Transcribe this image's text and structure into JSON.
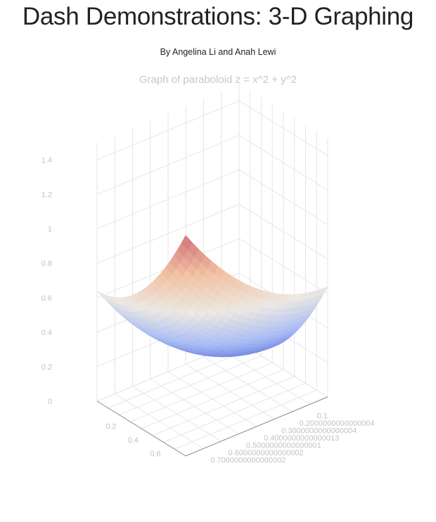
{
  "header": {
    "title": "Dash Demonstrations: 3-D Graphing",
    "byline": "By Angelina Li and Anah Lewi"
  },
  "chart_data": {
    "type": "surface",
    "title": "Graph of paraboloid z = x^2 + y^2",
    "function": "z = x^2 + y^2",
    "x": [
      0,
      0.1,
      0.2,
      0.3,
      0.4,
      0.5,
      0.6,
      0.7,
      0.8
    ],
    "y": [
      0,
      0.1,
      0.2,
      0.3,
      0.4,
      0.5,
      0.6,
      0.7,
      0.8
    ],
    "zlim": [
      0,
      1.5
    ],
    "colorscale": [
      "#5a6fdc",
      "#a9bdf5",
      "#ece8e2",
      "#f1c3a4",
      "#d4717a"
    ],
    "z_ticks": [
      "0",
      "0.2",
      "0.4",
      "0.6",
      "0.8",
      "1",
      "1.2",
      "1.4"
    ],
    "x_ticks": [
      "0.1",
      "0.2000000000000004",
      "0.3000000000000004",
      "0.4000000000000013",
      "0.5000000000000001",
      "0.6000000000000002",
      "0.7000000000000002"
    ],
    "y_ticks": [
      "0.2",
      "0.4",
      "0.6"
    ],
    "grid": true
  }
}
